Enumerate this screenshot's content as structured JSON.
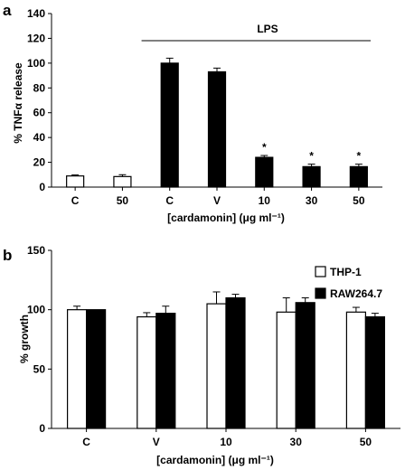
{
  "chart_data": [
    {
      "panel_label": "a",
      "type": "bar",
      "ylabel": "% TNFα release",
      "xlabel": "[cardamonin] (μg ml⁻¹)",
      "ylim": [
        0,
        140
      ],
      "yticks": [
        "0",
        "20",
        "40",
        "60",
        "80",
        "100",
        "120",
        "140"
      ],
      "categories": [
        "C",
        "50",
        "C",
        "V",
        "10",
        "30",
        "50"
      ],
      "values": [
        9,
        8.5,
        100,
        93,
        24,
        16.5,
        16.5
      ],
      "errors": [
        0.8,
        1.5,
        4,
        3,
        1.5,
        2,
        2
      ],
      "fills": [
        "white",
        "white",
        "black",
        "black",
        "black",
        "black",
        "black"
      ],
      "significance": [
        "",
        "",
        "",
        "",
        "*",
        "*",
        "*"
      ],
      "bracket_label": "LPS",
      "grid": false
    },
    {
      "panel_label": "b",
      "type": "bar",
      "ylabel": "% growth",
      "xlabel": "[cardamonin] (μg ml⁻¹)",
      "ylim": [
        0,
        150
      ],
      "yticks": [
        "0",
        "50",
        "100",
        "150"
      ],
      "categories": [
        "C",
        "V",
        "10",
        "30",
        "50"
      ],
      "series": [
        {
          "name": "THP-1",
          "fill": "white",
          "values": [
            100,
            94,
            105,
            98,
            98
          ],
          "errors": [
            3,
            3.5,
            10,
            12,
            4
          ]
        },
        {
          "name": "RAW264.7",
          "fill": "black",
          "values": [
            100,
            97,
            110,
            106,
            94
          ],
          "errors": [
            0,
            6,
            3,
            4,
            3
          ]
        }
      ],
      "legend_position": "top-right",
      "grid": false
    }
  ]
}
